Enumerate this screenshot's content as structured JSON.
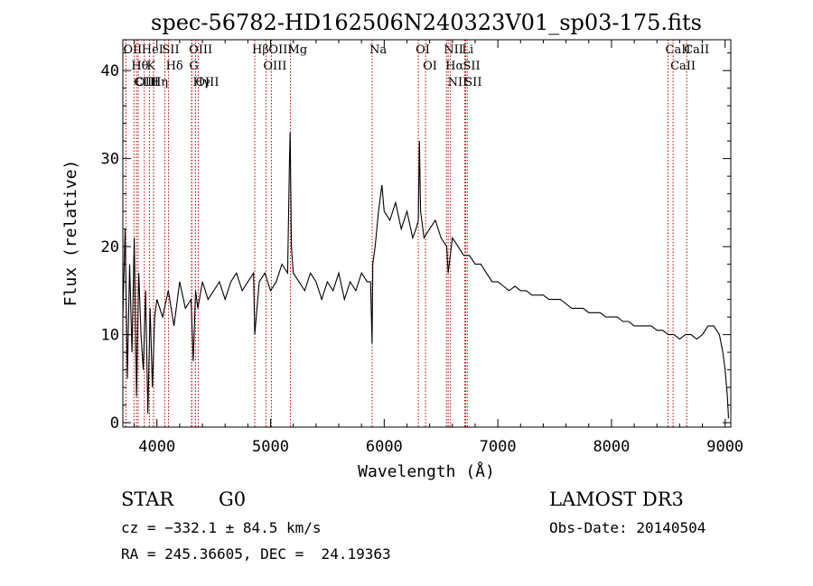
{
  "chart_data": {
    "type": "line",
    "title": "spec-56782-HD162506N240323V01_sp03-175.fits",
    "xlabel": "Wavelength (Å)",
    "ylabel": "Flux (relative)",
    "xlim": [
      3700,
      9050
    ],
    "ylim": [
      -0.5,
      43.5
    ],
    "xticks": [
      4000,
      5000,
      6000,
      7000,
      8000,
      9000
    ],
    "yticks": [
      0,
      10,
      20,
      30,
      40
    ],
    "grid": false,
    "series": [
      {
        "x": [
          3700,
          3720,
          3740,
          3760,
          3780,
          3800,
          3820,
          3840,
          3860,
          3880,
          3900,
          3920,
          3940,
          3960,
          3980,
          4000,
          4050,
          4100,
          4150,
          4200,
          4250,
          4300,
          4320,
          4340,
          4360,
          4400,
          4450,
          4500,
          4550,
          4600,
          4650,
          4700,
          4750,
          4800,
          4850,
          4861,
          4900,
          4950,
          5000,
          5050,
          5100,
          5150,
          5167,
          5172,
          5183,
          5200,
          5250,
          5300,
          5350,
          5400,
          5450,
          5500,
          5550,
          5600,
          5650,
          5700,
          5750,
          5800,
          5850,
          5880,
          5893,
          5900,
          5920,
          5950,
          5980,
          6000,
          6050,
          6100,
          6150,
          6200,
          6250,
          6280,
          6300,
          6310,
          6320,
          6350,
          6400,
          6450,
          6500,
          6550,
          6563,
          6600,
          6650,
          6700,
          6750,
          6800,
          6850,
          6900,
          6950,
          7000,
          7050,
          7100,
          7150,
          7200,
          7250,
          7300,
          7350,
          7400,
          7450,
          7500,
          7550,
          7600,
          7650,
          7700,
          7750,
          7800,
          7850,
          7900,
          7950,
          8000,
          8050,
          8100,
          8150,
          8200,
          8250,
          8300,
          8350,
          8400,
          8450,
          8500,
          8550,
          8600,
          8650,
          8700,
          8750,
          8800,
          8850,
          8900,
          8950,
          8980,
          9000,
          9020,
          9030
        ],
        "y": [
          12,
          22,
          5,
          18,
          8,
          21,
          3,
          17,
          10,
          6,
          15,
          1,
          13,
          4,
          12,
          14,
          12,
          15,
          11,
          16,
          13,
          14,
          7,
          15,
          13,
          16,
          14,
          15,
          16,
          14,
          16,
          17,
          15,
          16,
          17,
          10,
          16,
          17,
          15,
          16,
          18,
          17,
          30,
          33,
          20,
          17,
          16,
          15,
          17,
          16,
          14,
          16,
          15,
          17,
          14,
          16,
          15,
          17,
          16,
          16,
          9,
          18,
          20,
          24,
          27,
          24,
          23,
          25,
          22,
          24,
          21,
          22,
          23,
          32,
          24,
          21,
          22,
          23,
          21,
          20,
          17,
          21,
          20,
          19,
          19,
          18,
          18,
          17,
          16,
          16,
          15.5,
          15,
          15.5,
          15,
          15,
          14.5,
          14.5,
          14.5,
          14,
          14,
          14,
          13.5,
          13,
          13,
          13,
          12.5,
          12.5,
          12.5,
          12,
          12,
          12,
          11.5,
          11.5,
          11,
          11,
          11,
          11,
          10.5,
          10.5,
          10,
          10,
          9.5,
          10,
          10,
          9.5,
          10,
          11,
          11,
          10,
          8,
          6,
          3,
          0.5
        ]
      }
    ],
    "lines": [
      {
        "label": "OII",
        "wl": 3727
      },
      {
        "label": "Hθ",
        "wl": 3798
      },
      {
        "label": "CIII",
        "wl": 3820
      },
      {
        "label": "OIII",
        "wl": 3835
      },
      {
        "label": "HeI",
        "wl": 3889
      },
      {
        "label": "K",
        "wl": 3934
      },
      {
        "label": "Hη",
        "wl": 3970
      },
      {
        "label": "H",
        "wl": 3971
      },
      {
        "label": "SII",
        "wl": 4069
      },
      {
        "label": "Hδ",
        "wl": 4102
      },
      {
        "label": "OIII",
        "wl": 4305
      },
      {
        "label": "G",
        "wl": 4307
      },
      {
        "label": "Hγ",
        "wl": 4340
      },
      {
        "label": "OIII",
        "wl": 4363
      },
      {
        "label": "Hβ",
        "wl": 4861
      },
      {
        "label": "OIII",
        "wl": 4959
      },
      {
        "label": "OIII",
        "wl": 5007
      },
      {
        "label": "Mg",
        "wl": 5175
      },
      {
        "label": "Na",
        "wl": 5894
      },
      {
        "label": "OI",
        "wl": 6300
      },
      {
        "label": "OI",
        "wl": 6364
      },
      {
        "label": "NII",
        "wl": 6548
      },
      {
        "label": "Hα",
        "wl": 6563
      },
      {
        "label": "NII",
        "wl": 6583
      },
      {
        "label": "Li",
        "wl": 6708
      },
      {
        "label": "SII",
        "wl": 6717
      },
      {
        "label": "SII",
        "wl": 6731
      },
      {
        "label": "CaII",
        "wl": 8498
      },
      {
        "label": "CaII",
        "wl": 8542
      },
      {
        "label": "CaII",
        "wl": 8662
      }
    ]
  },
  "info": {
    "class": "STAR",
    "subclass": "G0",
    "survey": "LAMOST DR3",
    "cz": "cz = −332.1 ± 84.5 km/s",
    "obs_date": "Obs-Date: 20140504",
    "coords": "RA = 245.36605, DEC =  24.19363"
  }
}
